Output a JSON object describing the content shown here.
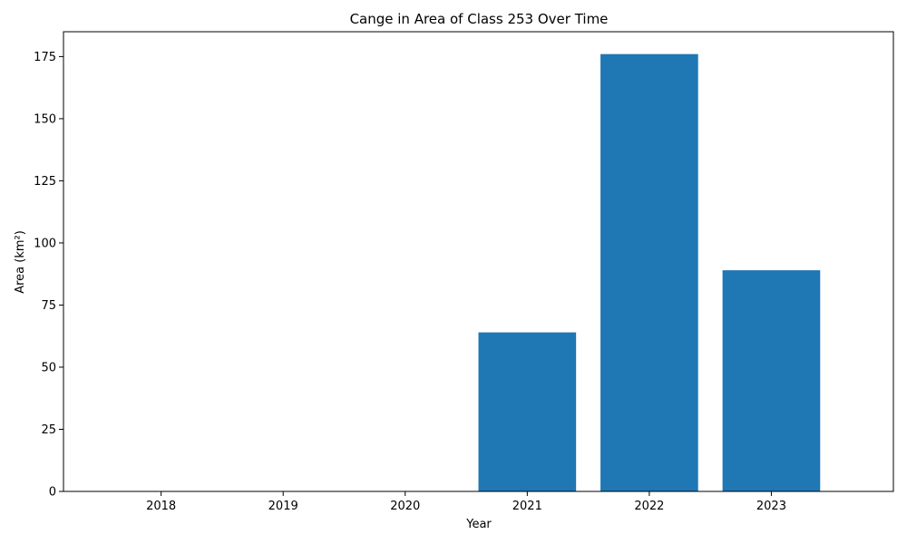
{
  "chart_data": {
    "type": "bar",
    "title": "Cange in Area of Class 253 Over Time",
    "xlabel": "Year",
    "ylabel": "Area (km²)",
    "categories": [
      "2018",
      "2019",
      "2020",
      "2021",
      "2022",
      "2023"
    ],
    "values": [
      0,
      0,
      0,
      64,
      176,
      89
    ],
    "ylim": [
      0,
      185
    ],
    "yticks": [
      0,
      25,
      50,
      75,
      100,
      125,
      150,
      175
    ],
    "grid": false,
    "legend": "none",
    "bar_color": "#1f77b4"
  }
}
